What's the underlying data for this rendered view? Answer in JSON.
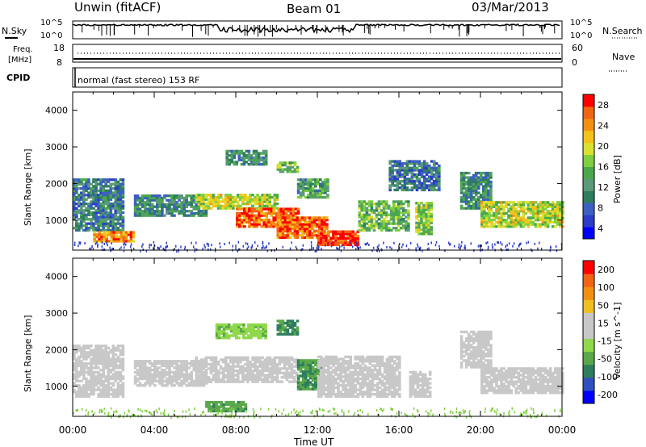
{
  "header": {
    "radar": "Unwin (fitACF)",
    "beam": "Beam 01",
    "date": "03/Mar/2013"
  },
  "noise_panel": {
    "left_label": "N.Sky",
    "right_label": "N.Search",
    "ticks": [
      "10^5",
      "10^0"
    ]
  },
  "freq_panel": {
    "left_label_1": "Freq.",
    "left_label_2": "[MHz]",
    "left_ticks": [
      "18",
      "8"
    ],
    "right_label": "Nave",
    "right_ticks": [
      "60",
      "0"
    ]
  },
  "cpid_panel": {
    "label": "CPID",
    "text": "normal (fast stereo) 153 RF"
  },
  "x_axis": {
    "label": "Time UT",
    "ticks": [
      "00:00",
      "04:00",
      "08:00",
      "12:00",
      "16:00",
      "20:00",
      "00:00"
    ]
  },
  "chart_data": [
    {
      "type": "heatmap",
      "ylabel": "Slant Range [km]",
      "y_ticks": [
        "1000",
        "2000",
        "3000",
        "4000"
      ],
      "ylim": [
        180,
        4500
      ],
      "xlim": [
        0,
        24
      ],
      "colorbar_label": "Power [dB]",
      "colorbar_ticks": [
        "28",
        "24",
        "20",
        "16",
        "12",
        "8",
        "4"
      ],
      "colorbar_range": [
        0,
        30
      ],
      "colorbar_colors": [
        "#0000ff",
        "#2b3cc8",
        "#3c5fc3",
        "#2e7d5e",
        "#5a9a7a",
        "#4aa84a",
        "#7fcf3f",
        "#d8e030",
        "#f3c21b",
        "#f39014",
        "#f26414",
        "#ff0000"
      ],
      "bands": [
        {
          "t": [
            0,
            2.5
          ],
          "r": [
            700,
            2100
          ],
          "v": 9
        },
        {
          "t": [
            1,
            3
          ],
          "r": [
            400,
            700
          ],
          "v": 24
        },
        {
          "t": [
            3,
            6.5
          ],
          "r": [
            1100,
            1700
          ],
          "v": 10
        },
        {
          "t": [
            6,
            10
          ],
          "r": [
            1300,
            1700
          ],
          "v": 18
        },
        {
          "t": [
            8,
            11
          ],
          "r": [
            800,
            1300
          ],
          "v": 26
        },
        {
          "t": [
            10,
            12.5
          ],
          "r": [
            500,
            1100
          ],
          "v": 26
        },
        {
          "t": [
            12,
            14
          ],
          "r": [
            300,
            700
          ],
          "v": 29
        },
        {
          "t": [
            7.5,
            9.5
          ],
          "r": [
            2500,
            2900
          ],
          "v": 10
        },
        {
          "t": [
            10,
            11
          ],
          "r": [
            2300,
            2600
          ],
          "v": 14
        },
        {
          "t": [
            11,
            12.5
          ],
          "r": [
            1600,
            2100
          ],
          "v": 12
        },
        {
          "t": [
            14,
            16.5
          ],
          "r": [
            700,
            1500
          ],
          "v": 14
        },
        {
          "t": [
            15.5,
            18
          ],
          "r": [
            1800,
            2600
          ],
          "v": 8
        },
        {
          "t": [
            16.8,
            17.6
          ],
          "r": [
            600,
            1500
          ],
          "v": 16
        },
        {
          "t": [
            19,
            20.5
          ],
          "r": [
            1300,
            2300
          ],
          "v": 10
        },
        {
          "t": [
            20,
            24
          ],
          "r": [
            800,
            1500
          ],
          "v": 18
        }
      ]
    },
    {
      "type": "heatmap",
      "ylabel": "Slant Range [km]",
      "y_ticks": [
        "1000",
        "2000",
        "3000",
        "4000"
      ],
      "ylim": [
        180,
        4500
      ],
      "xlim": [
        0,
        24
      ],
      "colorbar_label": "Velocity [m s^-1]",
      "colorbar_ticks": [
        "200",
        "100",
        "50",
        "15",
        "-15",
        "-50",
        "-100",
        "-200"
      ],
      "colorbar_range": [
        -250,
        250
      ],
      "colorbar_colors": [
        "#0000ff",
        "#3050c0",
        "#2e7d5e",
        "#5aa84a",
        "#8fd84a",
        "#c8c8c8",
        "#c8c8c8",
        "#f0c020",
        "#f39014",
        "#f26414",
        "#ff0000"
      ],
      "bands": [
        {
          "t": [
            0,
            2.5
          ],
          "r": [
            700,
            2100
          ],
          "v": 0
        },
        {
          "t": [
            3,
            6.5
          ],
          "r": [
            1000,
            1700
          ],
          "v": 0
        },
        {
          "t": [
            6,
            11
          ],
          "r": [
            1100,
            1800
          ],
          "v": 0
        },
        {
          "t": [
            7,
            9.5
          ],
          "r": [
            2300,
            2700
          ],
          "v": -60
        },
        {
          "t": [
            10,
            11
          ],
          "r": [
            2400,
            2800
          ],
          "v": -120
        },
        {
          "t": [
            11,
            12.2
          ],
          "r": [
            900,
            1700
          ],
          "v": -110
        },
        {
          "t": [
            6.5,
            8.5
          ],
          "r": [
            300,
            600
          ],
          "v": -100
        },
        {
          "t": [
            12,
            16
          ],
          "r": [
            700,
            1800
          ],
          "v": 0
        },
        {
          "t": [
            16.5,
            17.5
          ],
          "r": [
            700,
            1400
          ],
          "v": 0
        },
        {
          "t": [
            19,
            20.5
          ],
          "r": [
            1500,
            2500
          ],
          "v": 30
        },
        {
          "t": [
            20,
            24
          ],
          "r": [
            800,
            1500
          ],
          "v": 0
        }
      ]
    }
  ]
}
